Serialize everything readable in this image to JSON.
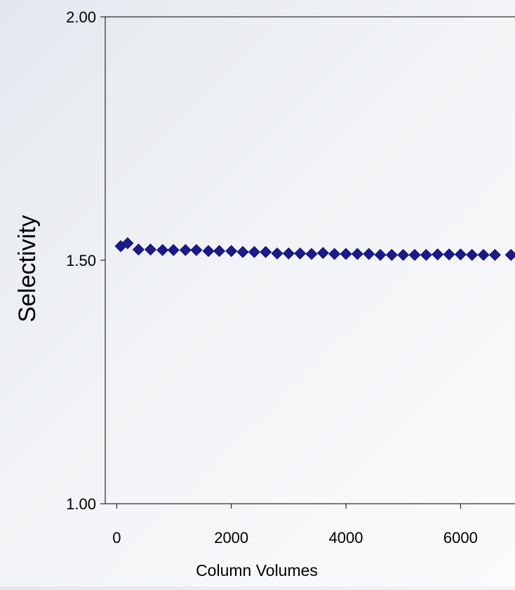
{
  "chart_data": {
    "type": "scatter",
    "title": "",
    "xlabel": "Column Volumes",
    "ylabel": "Selectivity",
    "xlim": [
      -200,
      6950
    ],
    "ylim": [
      1.0,
      2.0
    ],
    "x_ticks": [
      0,
      2000,
      4000,
      6000
    ],
    "x_tick_labels": [
      "0",
      "2000",
      "4000",
      "6000"
    ],
    "y_ticks": [
      1.0,
      1.5,
      2.0
    ],
    "y_tick_labels": [
      "1.00",
      "1.50",
      "2.00"
    ],
    "grid": false,
    "legend": "none",
    "marker": "diamond",
    "marker_color": "#1a1a8c",
    "series": [
      {
        "x": [
          70,
          190,
          380,
          590,
          800,
          990,
          1200,
          1390,
          1600,
          1790,
          2000,
          2200,
          2400,
          2600,
          2800,
          3000,
          3200,
          3400,
          3600,
          3800,
          4000,
          4200,
          4400,
          4600,
          4800,
          5000,
          5200,
          5400,
          5600,
          5800,
          6000,
          6200,
          6400,
          6600,
          6880
        ],
        "y": [
          1.529,
          1.535,
          1.522,
          1.522,
          1.521,
          1.521,
          1.521,
          1.521,
          1.519,
          1.519,
          1.519,
          1.517,
          1.517,
          1.517,
          1.514,
          1.514,
          1.514,
          1.513,
          1.515,
          1.513,
          1.513,
          1.513,
          1.513,
          1.511,
          1.511,
          1.511,
          1.511,
          1.511,
          1.512,
          1.512,
          1.512,
          1.511,
          1.511,
          1.511,
          1.511
        ]
      }
    ]
  }
}
